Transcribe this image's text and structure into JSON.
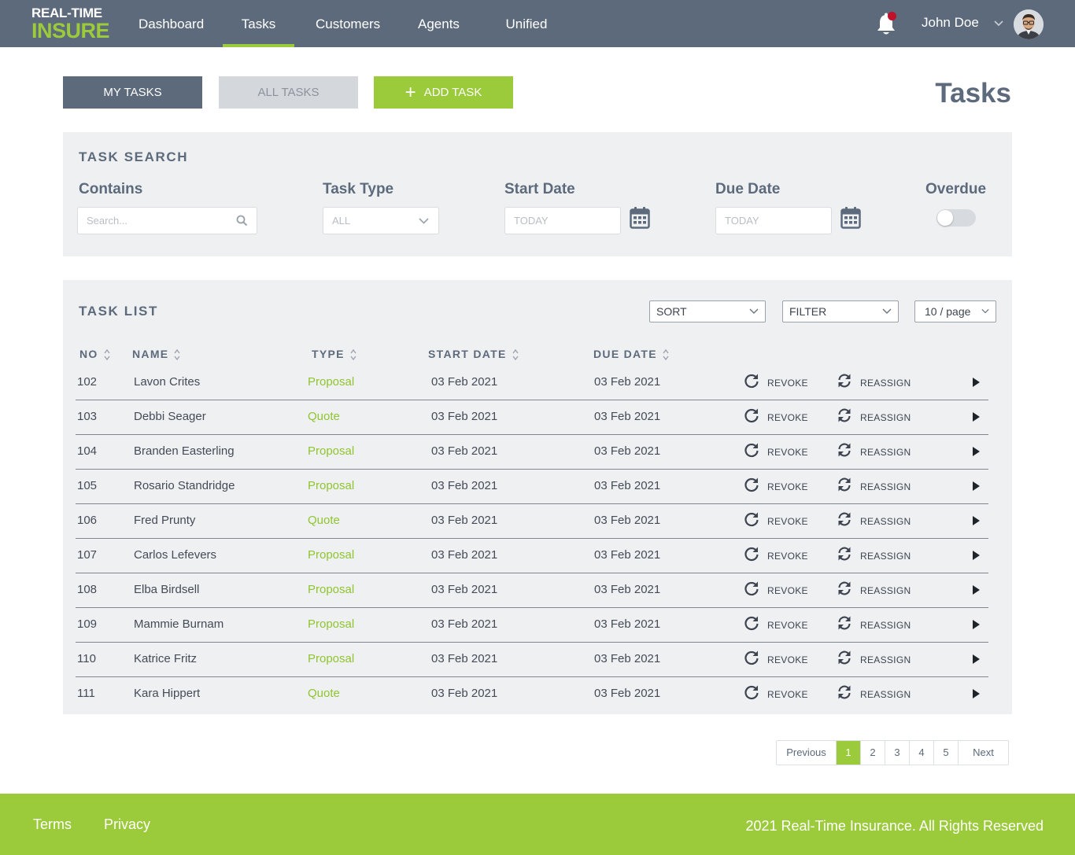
{
  "app": {
    "logo_line1": "REAL-TIME",
    "logo_line2": "INSURE"
  },
  "nav": {
    "items": [
      {
        "label": "Dashboard"
      },
      {
        "label": "Tasks",
        "active": true
      },
      {
        "label": "Customers"
      },
      {
        "label": "Agents"
      },
      {
        "label": "Unified"
      }
    ],
    "user_name": "John Doe",
    "notification_icon": "bell-icon"
  },
  "toolbar": {
    "my_tasks": "MY TASKS",
    "all_tasks": "ALL TASKS",
    "add_task": "ADD TASK",
    "add_symbol": "+",
    "page_title": "Tasks"
  },
  "search": {
    "title": "TASK SEARCH",
    "contains_label": "Contains",
    "contains_placeholder": "Search...",
    "task_type_label": "Task Type",
    "task_type_value": "ALL",
    "start_date_label": "Start Date",
    "start_date_placeholder": "TODAY",
    "due_date_label": "Due Date",
    "due_date_placeholder": "TODAY",
    "overdue_label": "Overdue",
    "overdue_on": false
  },
  "list": {
    "title": "TASK LIST",
    "sort_label": "SORT",
    "filter_label": "FILTER",
    "per_page_label": "10 / page",
    "columns": {
      "no": "NO",
      "name": "NAME",
      "type": "TYPE",
      "start_date": "START DATE",
      "due_date": "DUE DATE"
    },
    "revoke_label": "REVOKE",
    "reassign_label": "REASSIGN",
    "rows": [
      {
        "no": "102",
        "name": "Lavon Crites",
        "type": "Proposal",
        "start": "03 Feb 2021",
        "due": "03 Feb 2021"
      },
      {
        "no": "103",
        "name": "Debbi Seager",
        "type": "Quote",
        "start": "03 Feb 2021",
        "due": "03 Feb 2021"
      },
      {
        "no": "104",
        "name": "Branden Easterling",
        "type": "Proposal",
        "start": "03 Feb 2021",
        "due": "03 Feb 2021"
      },
      {
        "no": "105",
        "name": "Rosario Standridge",
        "type": "Proposal",
        "start": "03 Feb 2021",
        "due": "03 Feb 2021"
      },
      {
        "no": "106",
        "name": "Fred Prunty",
        "type": "Quote",
        "start": "03 Feb 2021",
        "due": "03 Feb 2021"
      },
      {
        "no": "107",
        "name": "Carlos Lefevers",
        "type": "Proposal",
        "start": "03 Feb 2021",
        "due": "03 Feb 2021"
      },
      {
        "no": "108",
        "name": "Elba Birdsell",
        "type": "Proposal",
        "start": "03 Feb 2021",
        "due": "03 Feb 2021"
      },
      {
        "no": "109",
        "name": "Mammie Burnam",
        "type": "Proposal",
        "start": "03 Feb 2021",
        "due": "03 Feb 2021"
      },
      {
        "no": "110",
        "name": "Katrice Fritz",
        "type": "Proposal",
        "start": "03 Feb 2021",
        "due": "03 Feb 2021"
      },
      {
        "no": "111",
        "name": "Kara Hippert",
        "type": "Quote",
        "start": "03 Feb 2021",
        "due": "03 Feb 2021"
      }
    ]
  },
  "pagination": {
    "previous": "Previous",
    "pages": [
      "1",
      "2",
      "3",
      "4",
      "5"
    ],
    "current": "1",
    "next": "Next"
  },
  "footer": {
    "terms": "Terms",
    "privacy": "Privacy",
    "copyright": "2021 Real-Time Insurance. All Rights Reserved"
  },
  "colors": {
    "nav_bg": "#5c6a7c",
    "accent_green": "#9bcb3a",
    "panel_bg": "#eff0f2",
    "notification_red": "#c0102a"
  }
}
